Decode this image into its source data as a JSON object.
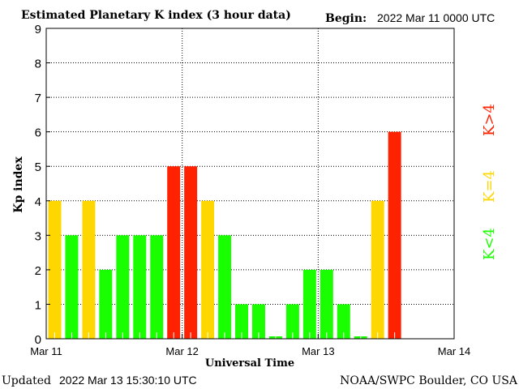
{
  "chart_data": {
    "type": "bar",
    "title": "Estimated Planetary K index (3 hour data)",
    "begin_label": "Begin:",
    "begin_value": "2022 Mar 11 0000 UTC",
    "xlabel": "Universal Time",
    "ylabel": "Kp index",
    "ylim": [
      0,
      9
    ],
    "yticks": [
      "0",
      "1",
      "2",
      "3",
      "4",
      "5",
      "6",
      "7",
      "8",
      "9"
    ],
    "xticks": [
      "Mar 11",
      "Mar 12",
      "Mar 13",
      "Mar 14"
    ],
    "slots_per_day": 8,
    "values": [
      4,
      3,
      4,
      2,
      3,
      3,
      3,
      5,
      5,
      4,
      3,
      1,
      1,
      0,
      1,
      2,
      2,
      1,
      0,
      4,
      6
    ],
    "grid": true,
    "legend": [
      {
        "label": "K<4",
        "color": "#1aff00"
      },
      {
        "label": "K=4",
        "color": "#ffd700"
      },
      {
        "label": "K>4",
        "color": "#ff2200"
      }
    ],
    "legend_placement": "right"
  },
  "footer": {
    "updated_label": "Updated",
    "updated_value": "2022 Mar 13 15:30:10 UTC",
    "source": "NOAA/SWPC Boulder, CO USA"
  }
}
